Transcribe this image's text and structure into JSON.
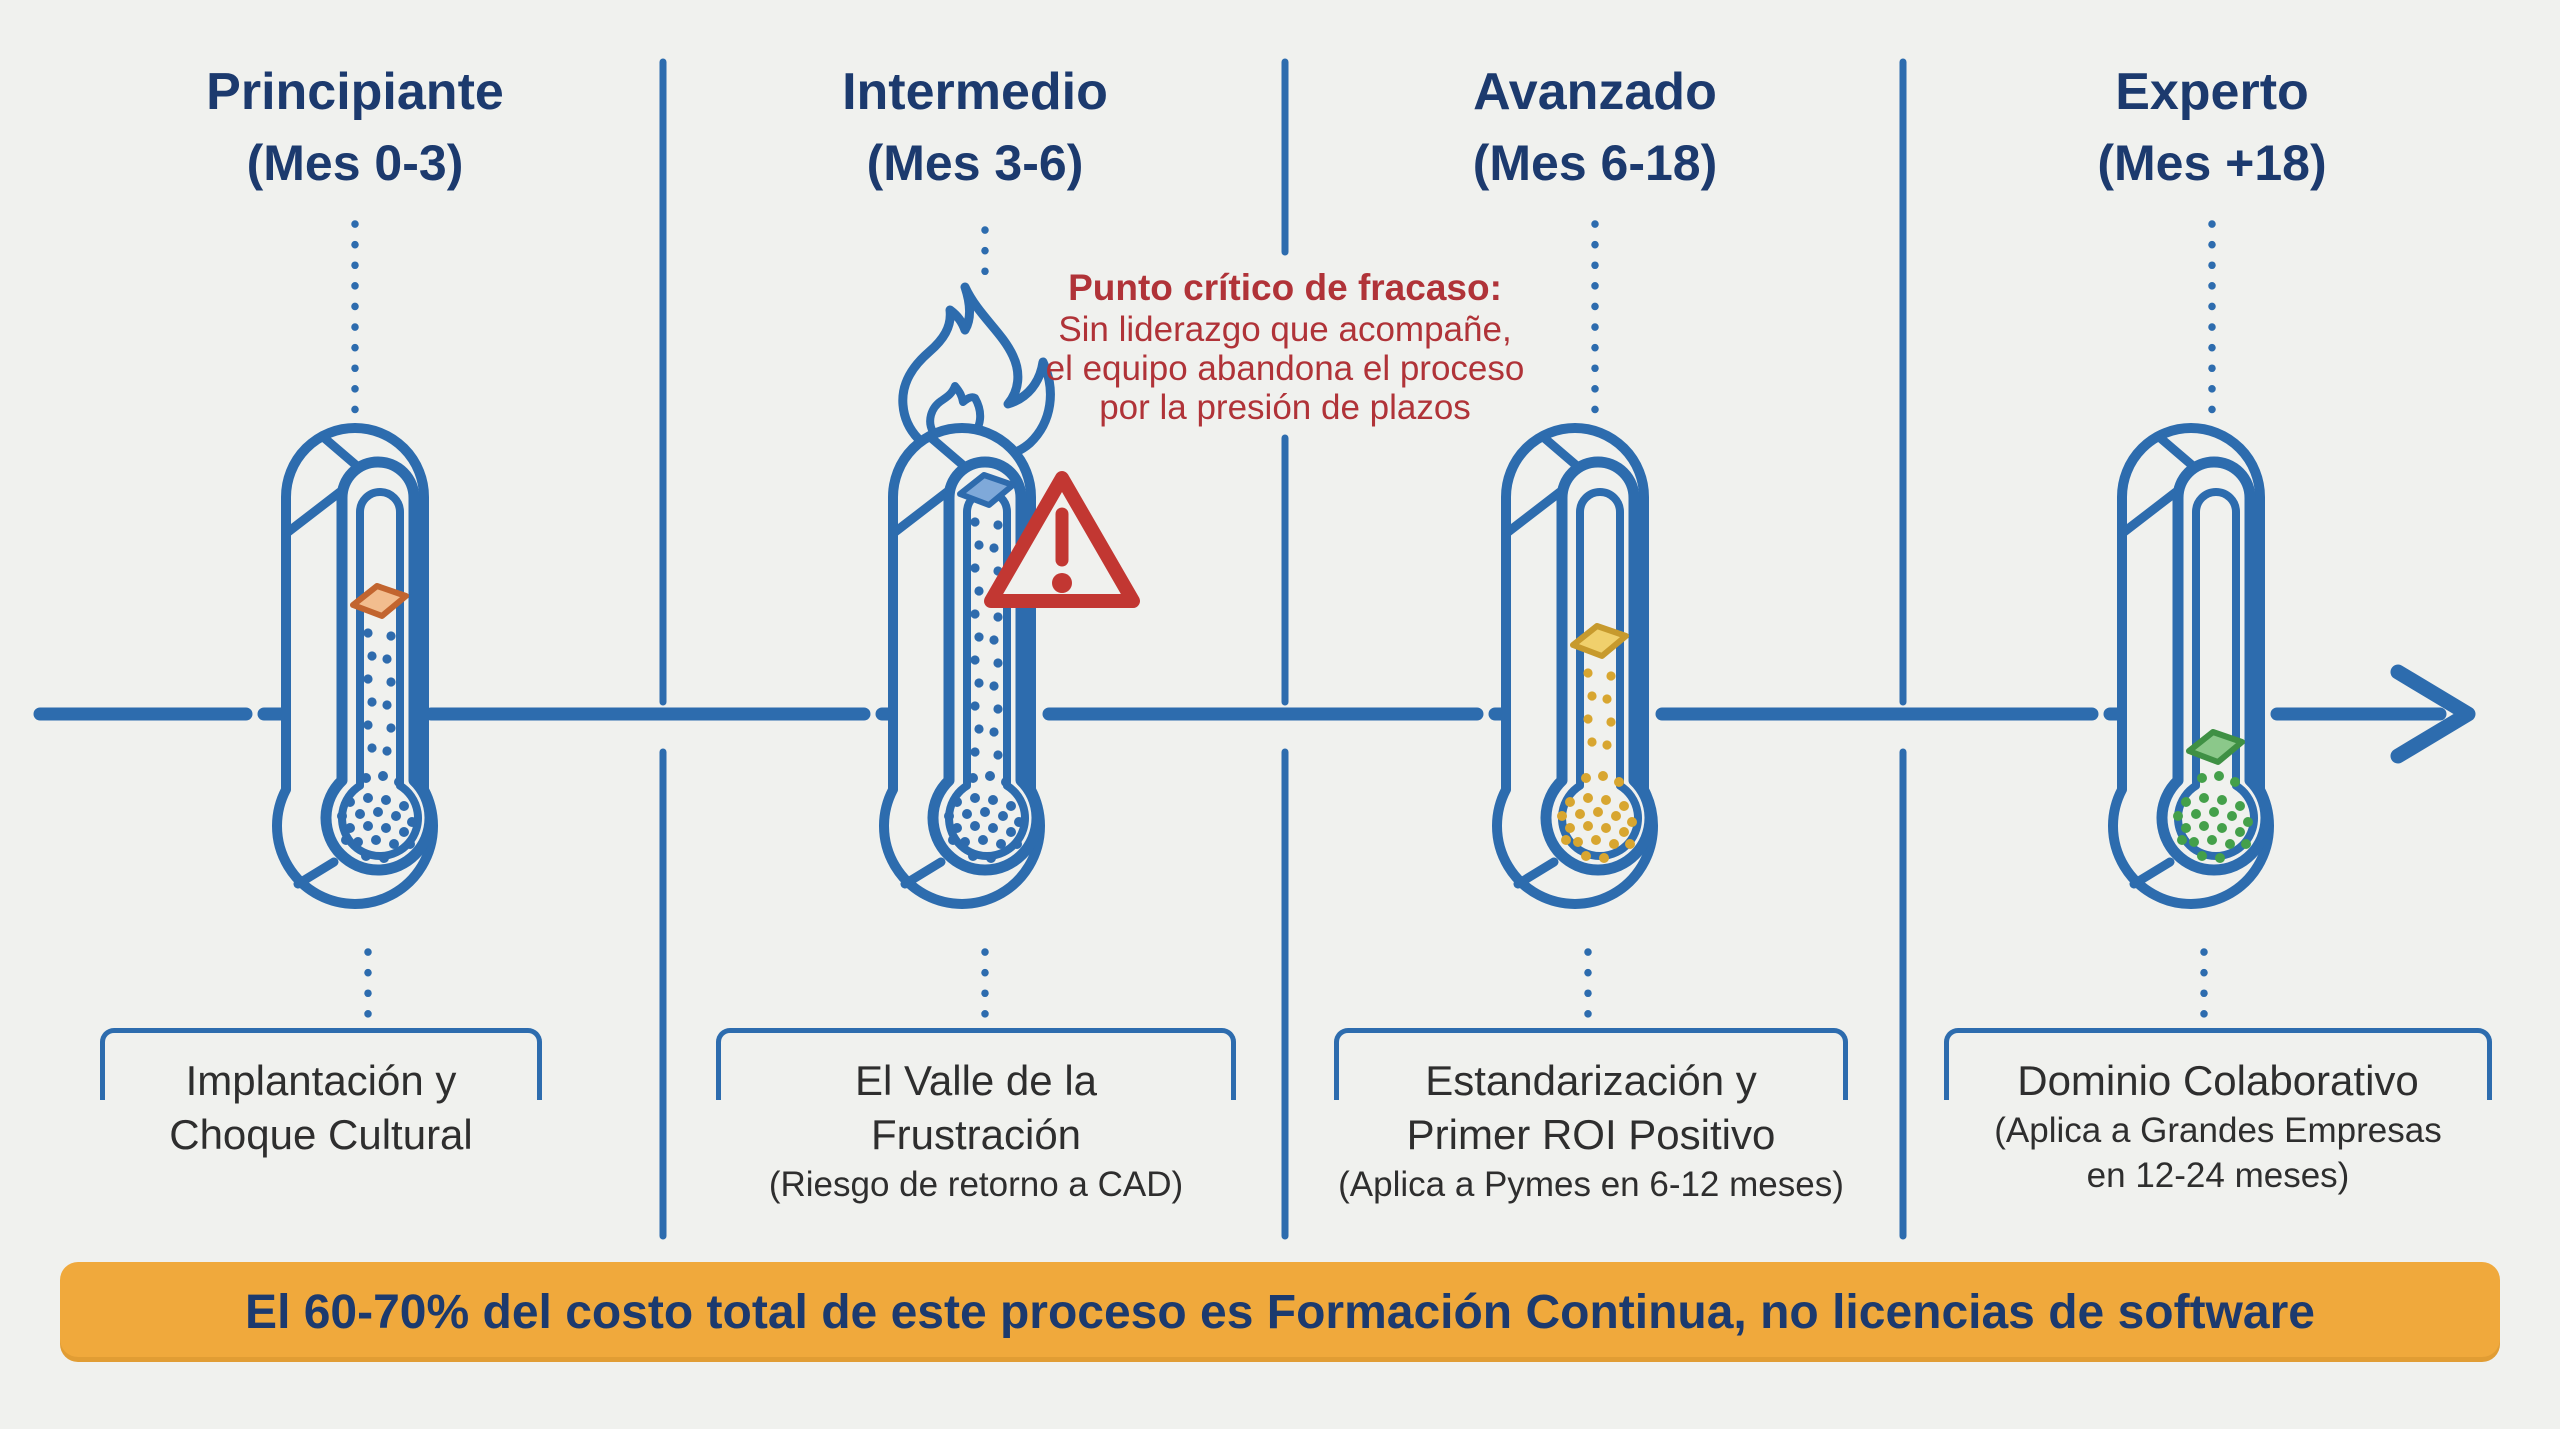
{
  "stages": [
    {
      "title": "Principiante",
      "period": "(Mes 0-3)",
      "label_lines": [
        "Implantación y",
        "Choque Cultural"
      ],
      "sublabel_lines": [],
      "fill_level": 0.58,
      "cap_fill": "#f2bd8e",
      "cap_stroke": "#c2652f",
      "dot_color": "#2e6bad",
      "thermometer_icon": "thermometer-low-fill"
    },
    {
      "title": "Intermedio",
      "period": "(Mes 3-6)",
      "label_lines": [
        "El Valle de la",
        "Frustración"
      ],
      "sublabel_lines": [
        "(Riesgo de retorno a CAD)"
      ],
      "fill_level": 1.0,
      "cap_fill": "#7fa9d9",
      "cap_stroke": "#2e6bad",
      "dot_color": "#2e6bad",
      "thermometer_icon": "thermometer-full-boiling",
      "extra_icons": [
        "flame-icon",
        "warning-triangle-icon"
      ]
    },
    {
      "title": "Avanzado",
      "period": "(Mes 6-18)",
      "label_lines": [
        "Estandarización y",
        "Primer ROI Positivo"
      ],
      "sublabel_lines": [
        "(Aplica a Pymes en 6-12 meses)"
      ],
      "fill_level": 0.43,
      "cap_fill": "#f0d06c",
      "cap_stroke": "#c79a2d",
      "dot_color": "#d8a630",
      "thermometer_icon": "thermometer-mid-fill"
    },
    {
      "title": "Experto",
      "period": "(Mes +18)",
      "label_lines": [
        "Dominio Colaborativo"
      ],
      "sublabel_lines": [
        "(Aplica a Grandes Empresas",
        "en 12-24 meses)"
      ],
      "fill_level": 0.03,
      "cap_fill": "#8bc88a",
      "cap_stroke": "#3f9044",
      "dot_color": "#44a04a",
      "thermometer_icon": "thermometer-bulb-fill"
    }
  ],
  "warning_note": {
    "title": "Punto crítico de fracaso:",
    "lines": [
      "Sin liderazgo que acompañe,",
      "el equipo abandona el proceso",
      "por la presión de plazos"
    ]
  },
  "banner": {
    "text": "El 60-70% del costo total de este proceso es Formación Continua, no licencias de software"
  },
  "colors": {
    "background": "#f0f1ee",
    "line_blue": "#2d6cae",
    "heading_navy": "#1c3a6e",
    "warning_red": "#b03338",
    "triangle_red": "#c23732",
    "banner_bg": "#f0a93c",
    "label_text": "#2e2e2e"
  }
}
